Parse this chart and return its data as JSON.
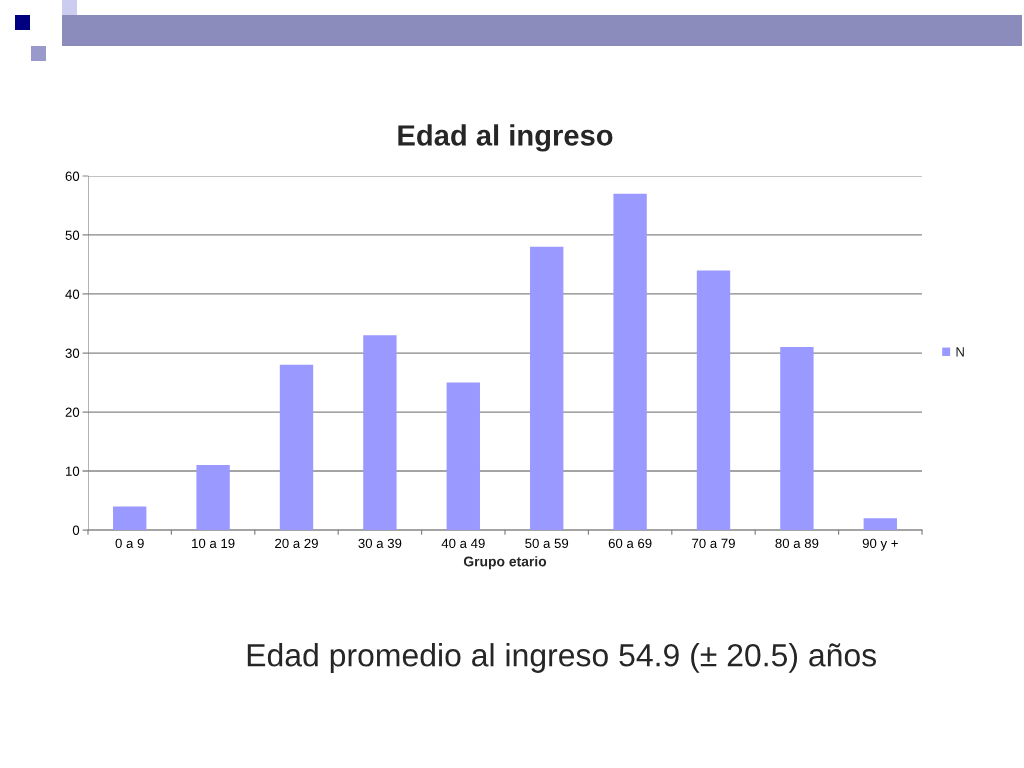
{
  "chart_data": {
    "type": "bar",
    "title": "Edad al ingreso",
    "xlabel": "Grupo etario",
    "categories": [
      "0 a 9",
      "10 a 19",
      "20 a 29",
      "30 a 39",
      "40 a 49",
      "50 a 59",
      "60 a 69",
      "70 a 79",
      "80 a 89",
      "90 y +"
    ],
    "series": [
      {
        "name": "N",
        "color": "#9999ff",
        "values": [
          4,
          11,
          28,
          33,
          25,
          48,
          57,
          44,
          31,
          2
        ]
      }
    ],
    "ylim": [
      0,
      60
    ],
    "yticks": [
      0,
      10,
      20,
      30,
      40,
      50,
      60
    ],
    "grid": "y",
    "legend": "right",
    "annotations": [
      "Edad promedio al ingreso 54.9 (± 20.5) años"
    ]
  }
}
